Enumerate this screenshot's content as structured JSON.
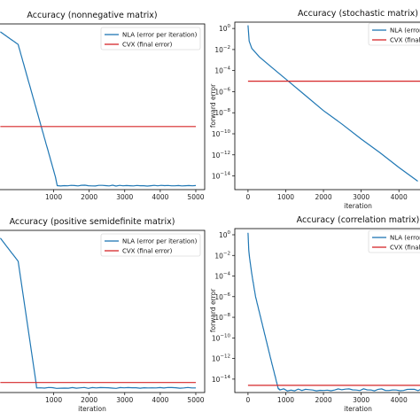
{
  "chart_data": [
    {
      "type": "line",
      "title": "Accuracy (nonnegative matrix)",
      "xlabel": "",
      "ylabel": "",
      "xlim": [
        0,
        5000
      ],
      "xticks": [
        "1000",
        "2000",
        "3000",
        "4000",
        "5000"
      ],
      "legend": "top-right",
      "series": [
        {
          "name": "NLA (error per iteration)",
          "color": "#1f77b4",
          "x": [
            -500,
            0,
            1050,
            1100,
            5000
          ],
          "y": [
            10.0,
            9.2,
            0.8,
            0.25,
            0.25
          ],
          "noise": true
        },
        {
          "name": "CVX (final error)",
          "color": "#d62728",
          "x": [
            -500,
            5000
          ],
          "y": [
            4.0,
            4.0
          ]
        }
      ]
    },
    {
      "type": "line",
      "title": "Accuracy (stochastic matrix)",
      "xlabel": "iteration",
      "ylabel": "forward error",
      "yscale": "log",
      "xlim": [
        0,
        4700
      ],
      "ylim_exp": [
        -15.3,
        0.6
      ],
      "xticks": [
        "0",
        "1000",
        "2000",
        "3000",
        "4000"
      ],
      "yticks": [
        {
          "base": "10",
          "exp": "0"
        },
        {
          "base": "10",
          "exp": "−2"
        },
        {
          "base": "10",
          "exp": "−4"
        },
        {
          "base": "10",
          "exp": "−6"
        },
        {
          "base": "10",
          "exp": "−8"
        },
        {
          "base": "10",
          "exp": "−10"
        },
        {
          "base": "10",
          "exp": "−12"
        },
        {
          "base": "10",
          "exp": "−14"
        }
      ],
      "legend": "top-right",
      "series": [
        {
          "name": "NLA (error per iteration)",
          "color": "#1f77b4",
          "x": [
            0,
            30,
            100,
            300,
            600,
            1000,
            1500,
            2000,
            2500,
            3000,
            3500,
            4000,
            4500
          ],
          "y_exp": [
            0.3,
            -1.2,
            -1.9,
            -2.7,
            -3.6,
            -4.8,
            -6.3,
            -7.8,
            -9.1,
            -10.5,
            -11.8,
            -13.2,
            -14.5
          ]
        },
        {
          "name": "CVX (final error)",
          "color": "#d62728",
          "x": [
            0,
            4700
          ],
          "y_exp": [
            -5.0,
            -5.0
          ]
        }
      ]
    },
    {
      "type": "line",
      "title": "Accuracy (positive semidefinite matrix)",
      "xlabel": "iteration",
      "ylabel": "",
      "xlim": [
        0,
        5000
      ],
      "xticks": [
        "1000",
        "2000",
        "3000",
        "4000",
        "5000"
      ],
      "legend": "top-right",
      "series": [
        {
          "name": "NLA (error per iteration)",
          "color": "#1f77b4",
          "x": [
            -500,
            0,
            500,
            520,
            5000
          ],
          "y": [
            10.0,
            8.5,
            0.7,
            0.3,
            0.3
          ],
          "noise": true
        },
        {
          "name": "CVX (final error)",
          "color": "#d62728",
          "x": [
            -500,
            5000
          ],
          "y": [
            0.65,
            0.65
          ]
        }
      ]
    },
    {
      "type": "line",
      "title": "Accuracy (correlation matrix)",
      "xlabel": "iteration",
      "ylabel": "forward error",
      "yscale": "log",
      "xlim": [
        0,
        4700
      ],
      "ylim_exp": [
        -15.3,
        0.6
      ],
      "xticks": [
        "0",
        "1000",
        "2000",
        "3000",
        "4000"
      ],
      "yticks": [
        {
          "base": "10",
          "exp": "0"
        },
        {
          "base": "10",
          "exp": "−2"
        },
        {
          "base": "10",
          "exp": "−4"
        },
        {
          "base": "10",
          "exp": "−6"
        },
        {
          "base": "10",
          "exp": "−8"
        },
        {
          "base": "10",
          "exp": "−10"
        },
        {
          "base": "10",
          "exp": "−12"
        },
        {
          "base": "10",
          "exp": "−14"
        }
      ],
      "legend": "top-right",
      "series": [
        {
          "name": "NLA (error per iteration)",
          "color": "#1f77b4",
          "x": [
            0,
            20,
            40,
            100,
            200,
            400,
            600,
            800,
            850,
            4700
          ],
          "y_exp": [
            0.2,
            -1.5,
            -2.2,
            -3.8,
            -6.0,
            -9.0,
            -12.0,
            -14.9,
            -15.05,
            -15.05
          ],
          "noise": true
        },
        {
          "name": "CVX (final error)",
          "color": "#d62728",
          "x": [
            0,
            4700
          ],
          "y_exp": [
            -14.6,
            -14.6
          ]
        }
      ]
    }
  ]
}
